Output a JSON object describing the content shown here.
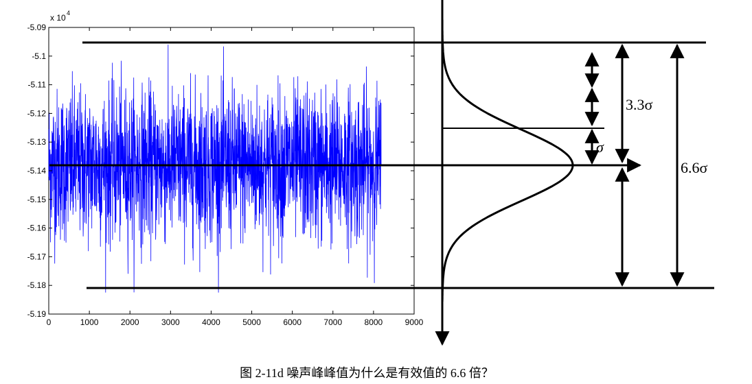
{
  "chart_data": {
    "type": "line",
    "title": "",
    "xlabel": "",
    "ylabel": "",
    "xlim": [
      0,
      9000
    ],
    "ylim": [
      -5.19,
      -5.09
    ],
    "x_ticks": [
      "0",
      "1000",
      "2000",
      "3000",
      "4000",
      "5000",
      "6000",
      "7000",
      "8000",
      "9000"
    ],
    "y_ticks": [
      "-5.09",
      "-5.1",
      "-5.11",
      "-5.12",
      "-5.13",
      "-5.14",
      "-5.15",
      "-5.16",
      "-5.17",
      "-5.18",
      "-5.19"
    ],
    "y_multiplier": "x 10",
    "y_multiplier_exp": "4",
    "series": [
      {
        "color": "#0000ff",
        "n_samples": 8192,
        "mean": -5.138,
        "peak_max": -5.096,
        "peak_min": -5.1825
      }
    ],
    "grid": false
  },
  "annotations": {
    "sigma": "σ",
    "three_three_sigma": "3.3σ",
    "six_six_sigma": "6.6σ"
  },
  "caption": "图 2-11d  噪声峰峰值为什么是有效值的 6.6 倍？",
  "colors": {
    "signal": "#0000ff",
    "lines": "#000000",
    "axes_box": "#000000"
  }
}
